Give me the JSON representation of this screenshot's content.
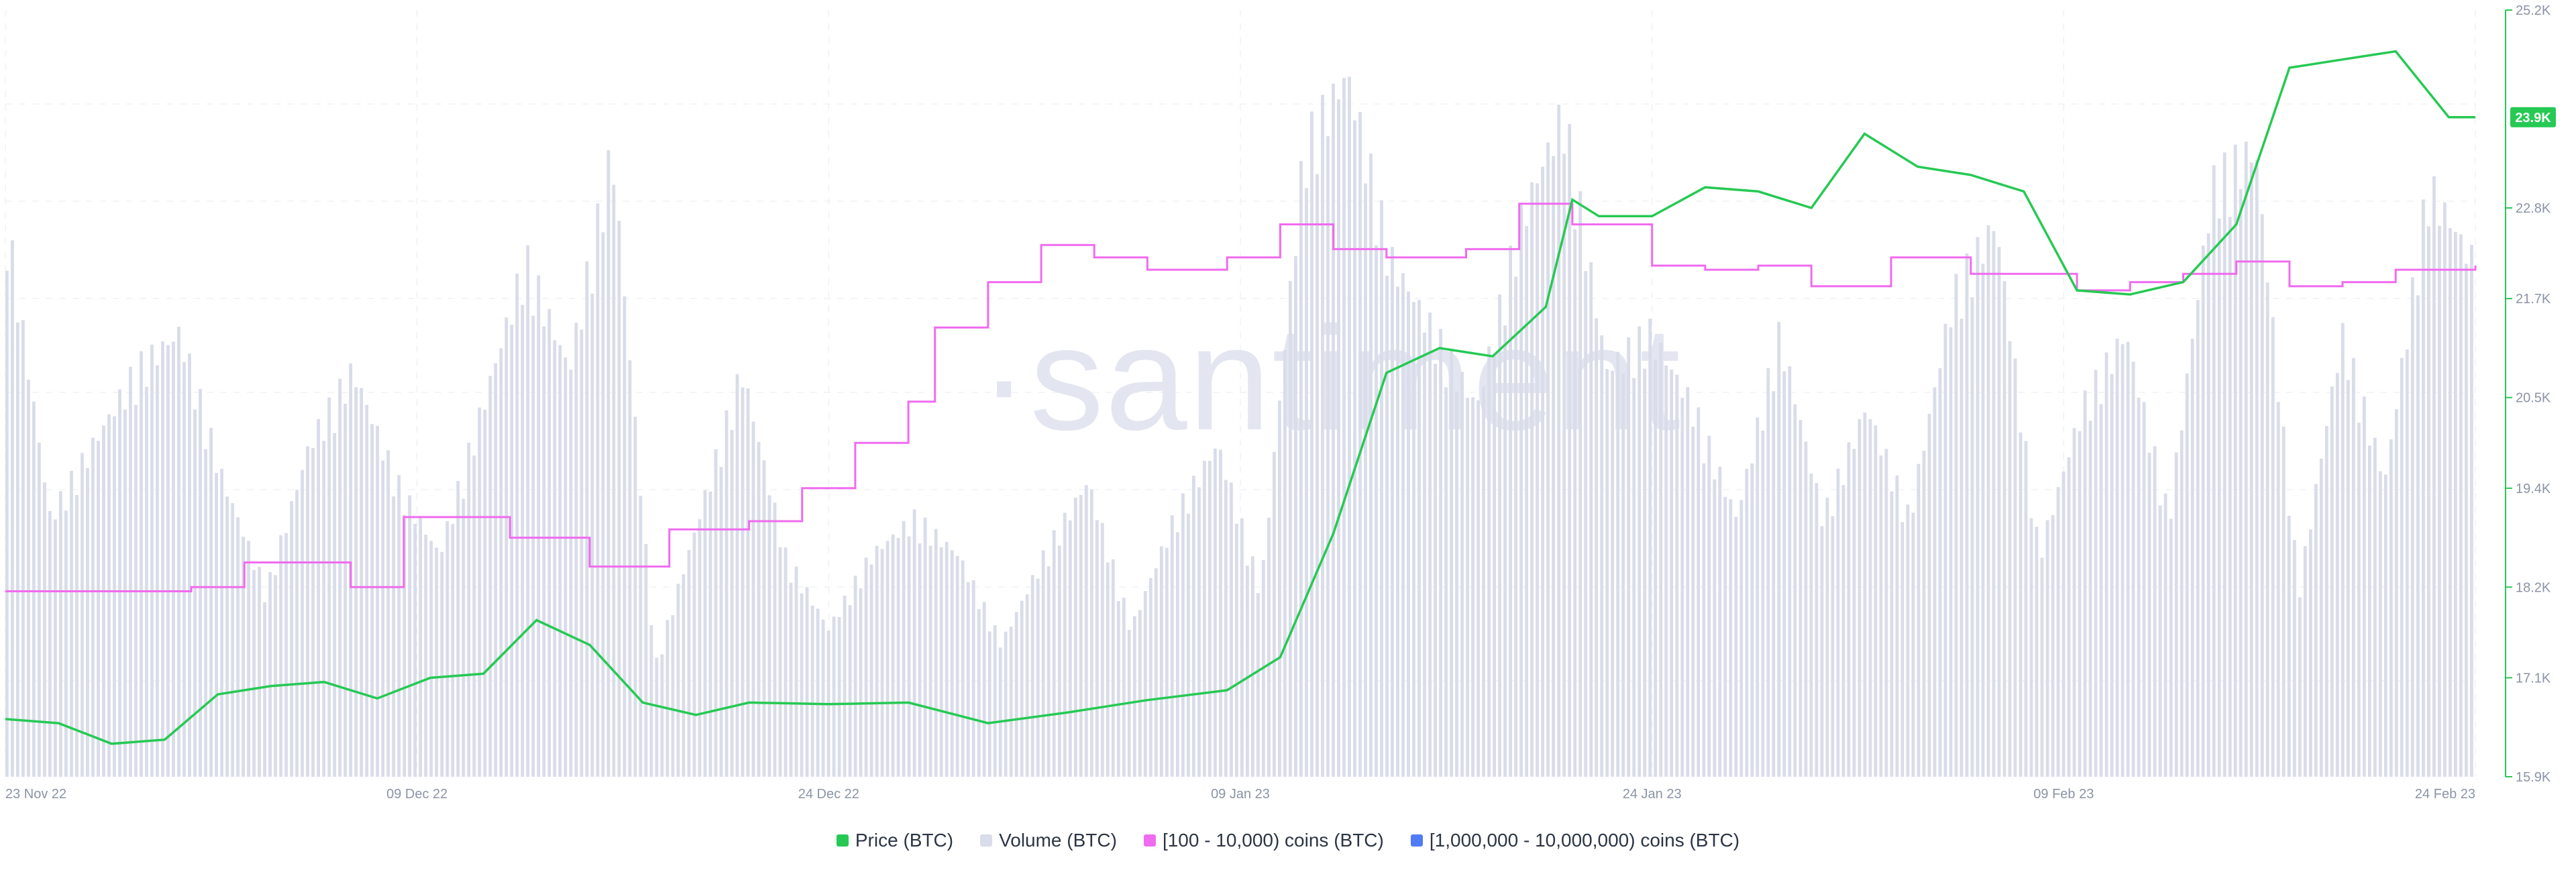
{
  "watermark": "·santiment",
  "chart_data": {
    "type": "line",
    "x_dates": [
      "23 Nov 22",
      "09 Dec 22",
      "24 Dec 22",
      "09 Jan 23",
      "24 Jan 23",
      "09 Feb 23",
      "24 Feb 23"
    ],
    "yaxis_ticks": [
      "15.9K",
      "17.1K",
      "18.2K",
      "19.4K",
      "20.5K",
      "21.7K",
      "22.8K",
      "25.2K"
    ],
    "ylim": [
      15900,
      25200
    ],
    "current_price_label": "23.9K",
    "series": [
      {
        "name": "Price (BTC)",
        "color": "#26c953",
        "type": "line",
        "points": [
          [
            "2022-11-23",
            16600
          ],
          [
            "2022-11-25",
            16550
          ],
          [
            "2022-11-27",
            16300
          ],
          [
            "2022-11-29",
            16350
          ],
          [
            "2022-12-01",
            16900
          ],
          [
            "2022-12-03",
            17000
          ],
          [
            "2022-12-05",
            17050
          ],
          [
            "2022-12-07",
            16850
          ],
          [
            "2022-12-09",
            17100
          ],
          [
            "2022-12-11",
            17150
          ],
          [
            "2022-12-13",
            17800
          ],
          [
            "2022-12-15",
            17500
          ],
          [
            "2022-12-17",
            16800
          ],
          [
            "2022-12-19",
            16650
          ],
          [
            "2022-12-21",
            16800
          ],
          [
            "2022-12-24",
            16780
          ],
          [
            "2022-12-27",
            16800
          ],
          [
            "2022-12-30",
            16550
          ],
          [
            "2023-01-02",
            16680
          ],
          [
            "2023-01-05",
            16830
          ],
          [
            "2023-01-08",
            16950
          ],
          [
            "2023-01-10",
            17350
          ],
          [
            "2023-01-12",
            18850
          ],
          [
            "2023-01-14",
            20800
          ],
          [
            "2023-01-16",
            21100
          ],
          [
            "2023-01-18",
            21000
          ],
          [
            "2023-01-20",
            21600
          ],
          [
            "2023-01-21",
            22900
          ],
          [
            "2023-01-22",
            22700
          ],
          [
            "2023-01-24",
            22700
          ],
          [
            "2023-01-26",
            23050
          ],
          [
            "2023-01-28",
            23000
          ],
          [
            "2023-01-30",
            22800
          ],
          [
            "2023-02-01",
            23700
          ],
          [
            "2023-02-03",
            23300
          ],
          [
            "2023-02-05",
            23200
          ],
          [
            "2023-02-07",
            23000
          ],
          [
            "2023-02-09",
            21800
          ],
          [
            "2023-02-11",
            21750
          ],
          [
            "2023-02-13",
            21900
          ],
          [
            "2023-02-15",
            22600
          ],
          [
            "2023-02-17",
            24500
          ],
          [
            "2023-02-19",
            24600
          ],
          [
            "2023-02-21",
            24700
          ],
          [
            "2023-02-23",
            23900
          ],
          [
            "2023-02-24",
            23900
          ]
        ]
      },
      {
        "name": "Volume (BTC)",
        "color": "#d9dce9",
        "type": "bar",
        "relative_levels": [
          0.75,
          0.35,
          0.45,
          0.55,
          0.6,
          0.4,
          0.25,
          0.45,
          0.55,
          0.4,
          0.3,
          0.5,
          0.7,
          0.55,
          0.85,
          0.15,
          0.35,
          0.55,
          0.3,
          0.2,
          0.3,
          0.35,
          0.3,
          0.18,
          0.3,
          0.4,
          0.2,
          0.35,
          0.45,
          0.25,
          0.85,
          0.95,
          0.7,
          0.6,
          0.5,
          0.75,
          0.9,
          0.55,
          0.6,
          0.5,
          0.35,
          0.6,
          0.35,
          0.5,
          0.35,
          0.65,
          0.75,
          0.3,
          0.5,
          0.6,
          0.35,
          0.8,
          0.85,
          0.25,
          0.6,
          0.4,
          0.8,
          0.7
        ]
      },
      {
        "name": "[100 - 10,000) coins (BTC)",
        "color": "#f06bef",
        "type": "line",
        "points": [
          [
            "2022-11-23",
            18150
          ],
          [
            "2022-11-30",
            18200
          ],
          [
            "2022-12-02",
            18500
          ],
          [
            "2022-12-06",
            18200
          ],
          [
            "2022-12-08",
            19050
          ],
          [
            "2022-12-12",
            18800
          ],
          [
            "2022-12-15",
            18450
          ],
          [
            "2022-12-18",
            18900
          ],
          [
            "2022-12-21",
            19000
          ],
          [
            "2022-12-23",
            19400
          ],
          [
            "2022-12-25",
            19950
          ],
          [
            "2022-12-27",
            20450
          ],
          [
            "2022-12-28",
            21350
          ],
          [
            "2022-12-30",
            21900
          ],
          [
            "2023-01-01",
            22350
          ],
          [
            "2023-01-03",
            22200
          ],
          [
            "2023-01-05",
            22050
          ],
          [
            "2023-01-08",
            22200
          ],
          [
            "2023-01-10",
            22600
          ],
          [
            "2023-01-12",
            22300
          ],
          [
            "2023-01-14",
            22200
          ],
          [
            "2023-01-17",
            22300
          ],
          [
            "2023-01-19",
            22850
          ],
          [
            "2023-01-21",
            22600
          ],
          [
            "2023-01-24",
            22100
          ],
          [
            "2023-01-26",
            22050
          ],
          [
            "2023-01-28",
            22100
          ],
          [
            "2023-01-30",
            21850
          ],
          [
            "2023-02-02",
            22200
          ],
          [
            "2023-02-05",
            22000
          ],
          [
            "2023-02-09",
            21800
          ],
          [
            "2023-02-11",
            21900
          ],
          [
            "2023-02-13",
            22000
          ],
          [
            "2023-02-15",
            22150
          ],
          [
            "2023-02-17",
            21850
          ],
          [
            "2023-02-19",
            21900
          ],
          [
            "2023-02-21",
            22050
          ],
          [
            "2023-02-24",
            22100
          ]
        ]
      },
      {
        "name": "[1,000,000 - 10,000,000) coins (BTC)",
        "color": "#4f7cf5",
        "type": "line",
        "points": []
      }
    ]
  }
}
